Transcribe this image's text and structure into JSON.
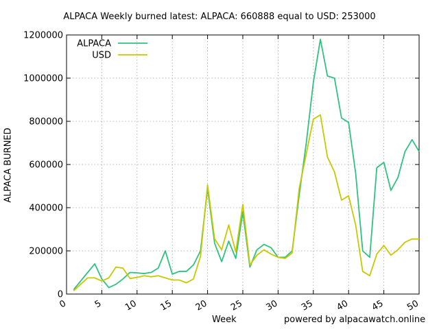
{
  "chart_data": {
    "type": "line",
    "title": "ALPACA Weekly burned latest: ALPACA: 660888 equal to USD: 253000",
    "xlabel": "Week",
    "ylabel": "ALPACA BURNED",
    "credit": "powered by alpacawatch.online",
    "xlim": [
      0,
      50
    ],
    "ylim": [
      0,
      1200000
    ],
    "x_ticks": [
      0,
      5,
      10,
      15,
      20,
      25,
      30,
      35,
      40,
      45,
      50
    ],
    "y_ticks": [
      0,
      200000,
      400000,
      600000,
      800000,
      1000000,
      1200000
    ],
    "grid": true,
    "legend_position": "top-left",
    "x": [
      1,
      2,
      3,
      4,
      5,
      6,
      7,
      8,
      9,
      10,
      11,
      12,
      13,
      14,
      15,
      16,
      17,
      18,
      19,
      20,
      21,
      22,
      23,
      24,
      25,
      26,
      27,
      28,
      29,
      30,
      31,
      32,
      33,
      34,
      35,
      36,
      37,
      38,
      39,
      40,
      41,
      42,
      43,
      44,
      45,
      46,
      47,
      48,
      49,
      50
    ],
    "series": [
      {
        "name": "ALPACA",
        "color": "#2ec27e",
        "values": [
          20000,
          60000,
          100000,
          140000,
          70000,
          30000,
          45000,
          70000,
          100000,
          98000,
          95000,
          100000,
          120000,
          200000,
          92000,
          105000,
          105000,
          135000,
          200000,
          490000,
          235000,
          150000,
          245000,
          165000,
          380000,
          125000,
          205000,
          230000,
          215000,
          170000,
          170000,
          200000,
          460000,
          700000,
          980000,
          1180000,
          1010000,
          1000000,
          815000,
          795000,
          560000,
          200000,
          170000,
          585000,
          610000,
          480000,
          540000,
          660000,
          715000,
          660000
        ]
      },
      {
        "name": "USD",
        "color": "#c8c800",
        "values": [
          15000,
          45000,
          75000,
          75000,
          60000,
          75000,
          125000,
          120000,
          72000,
          77000,
          85000,
          80000,
          85000,
          75000,
          65000,
          65000,
          52000,
          70000,
          175000,
          505000,
          255000,
          205000,
          320000,
          195000,
          415000,
          135000,
          180000,
          205000,
          185000,
          170000,
          165000,
          190000,
          490000,
          650000,
          810000,
          830000,
          635000,
          565000,
          435000,
          455000,
          320000,
          105000,
          85000,
          185000,
          225000,
          180000,
          205000,
          240000,
          255000,
          255000
        ]
      }
    ]
  }
}
